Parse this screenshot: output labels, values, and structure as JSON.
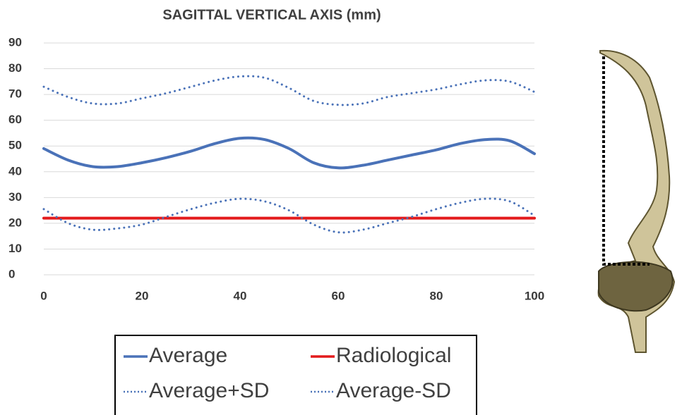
{
  "chart_data": {
    "type": "line",
    "title": "SAGITTAL VERTICAL AXIS (mm)",
    "x": [
      0,
      5,
      10,
      15,
      20,
      25,
      30,
      35,
      40,
      45,
      50,
      55,
      60,
      65,
      70,
      75,
      80,
      85,
      90,
      95,
      100
    ],
    "xlim": [
      0,
      100
    ],
    "xticks": [
      0,
      20,
      40,
      60,
      80,
      100
    ],
    "ylim": [
      0,
      90
    ],
    "yticks": [
      0,
      10,
      20,
      30,
      40,
      50,
      60,
      70,
      80,
      90
    ],
    "grid": true,
    "series": [
      {
        "name": "Average",
        "color": "#4a72b8",
        "line_style": "solid",
        "values": [
          49,
          44.5,
          42,
          42,
          43.5,
          45.5,
          48,
          51,
          53,
          52.5,
          49,
          43.5,
          41.5,
          42.5,
          44.5,
          46.5,
          48.5,
          51,
          52.5,
          52,
          47
        ]
      },
      {
        "name": "Radiological",
        "color": "#e31a1c",
        "line_style": "solid",
        "values": [
          22,
          22,
          22,
          22,
          22,
          22,
          22,
          22,
          22,
          22,
          22,
          22,
          22,
          22,
          22,
          22,
          22,
          22,
          22,
          22,
          22
        ]
      },
      {
        "name": "Average+SD",
        "color": "#4a72b8",
        "line_style": "dotted",
        "values": [
          73,
          69,
          66.5,
          66.5,
          68.5,
          70.5,
          73,
          75.5,
          77,
          76.5,
          72.5,
          67.5,
          66,
          66.5,
          69,
          70.5,
          72,
          74,
          75.5,
          75,
          71
        ]
      },
      {
        "name": "Average-SD",
        "color": "#4a72b8",
        "line_style": "dotted",
        "values": [
          25.5,
          20,
          17.5,
          18,
          19.5,
          22.5,
          25.5,
          28,
          29.5,
          28.5,
          25,
          19.5,
          16.5,
          17.5,
          20,
          22.5,
          25.5,
          28,
          29.5,
          28.5,
          23
        ]
      }
    ]
  }
}
